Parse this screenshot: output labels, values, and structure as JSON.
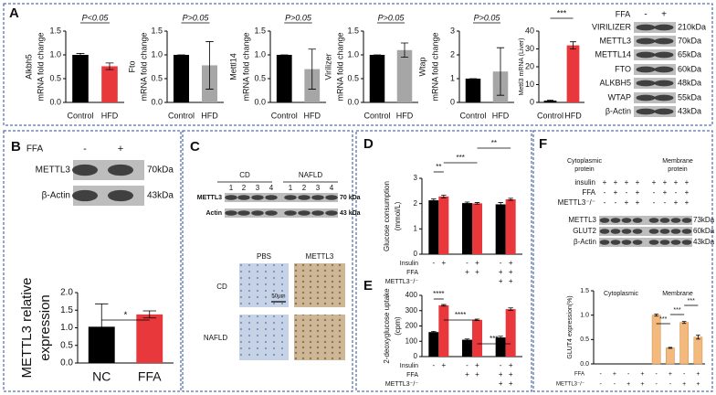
{
  "panel_labels": [
    "A",
    "B",
    "C",
    "D",
    "E",
    "F"
  ],
  "blots": [
    {
      "header": "FFA",
      "lanes": [
        "-",
        "+"
      ],
      "rows": [
        {
          "protein": "VIRILIZER",
          "size": "210kDa"
        },
        {
          "protein": "METTL3",
          "size": "70kDa"
        },
        {
          "protein": "METTL14",
          "size": "65kDa"
        },
        {
          "protein": "FTO",
          "size": "60kDa"
        },
        {
          "protein": "ALKBH5",
          "size": "48kDa"
        },
        {
          "protein": "WTAP",
          "size": "55kDa"
        },
        {
          "protein": "β-Actin",
          "size": "43kDa"
        }
      ]
    },
    {
      "header": "FFA",
      "lanes": [
        "-",
        "+"
      ],
      "rows": [
        {
          "protein": "METTL3",
          "size": "70kDa"
        },
        {
          "protein": "β-Actin",
          "size": "43kDa"
        }
      ]
    },
    {
      "groups": [
        "CD",
        "NAFLD"
      ],
      "lanes": [
        "1",
        "2",
        "3",
        "4",
        "1",
        "2",
        "3",
        "4"
      ],
      "rows": [
        {
          "protein": "METTL3",
          "size": "70 kDa"
        },
        {
          "protein": "Actin",
          "size": "43 kDa"
        }
      ]
    },
    {
      "groups": [
        [
          "Cytoplasmic",
          "protein"
        ],
        [
          "Membrane",
          "protein"
        ]
      ],
      "conditions": [
        {
          "label": "insulin",
          "signs": [
            "+",
            "+",
            "+",
            "+",
            "+",
            "+",
            "+",
            "+"
          ]
        },
        {
          "label": "FFA",
          "signs": [
            "-",
            "+",
            "-",
            "+",
            "-",
            "+",
            "-",
            "+"
          ]
        },
        {
          "label": "METTL3⁻/⁻",
          "signs": [
            "-",
            "-",
            "+",
            "+",
            "-",
            "-",
            "+",
            "+"
          ]
        }
      ],
      "rows": [
        {
          "protein": "METTL3",
          "size": "73kDa"
        },
        {
          "protein": "GLUT2",
          "size": "60kDa"
        },
        {
          "protein": "β-Actin",
          "size": "43kDa"
        }
      ]
    }
  ],
  "histology": {
    "columns": [
      "PBS",
      "METTL3"
    ],
    "rows": [
      "CD",
      "NAFLD"
    ],
    "scale": "50μm"
  },
  "chart_data": [
    {
      "type": "bar",
      "ylabel": [
        "Alkbh5",
        "mRNA fold change"
      ],
      "categories": [
        "Control",
        "HFD"
      ],
      "values": [
        1.0,
        0.76
      ],
      "errors": [
        0.03,
        0.07
      ],
      "colors": [
        "#000000",
        "#e8383b"
      ],
      "ylim": [
        0,
        1.5
      ],
      "yticks": [
        {
          "value": 0,
          "label": "0.0"
        },
        0.5,
        {
          "value": 1,
          "label": "1.0"
        },
        1.5
      ],
      "annotations": [
        "P<0.05"
      ]
    },
    {
      "type": "bar",
      "ylabel": [
        "Fto",
        "mRNA fold change"
      ],
      "categories": [
        "Control",
        "HFD"
      ],
      "values": [
        1.0,
        0.78
      ],
      "errors": [
        0,
        0.5
      ],
      "colors": [
        "#000000",
        "#a6a6a6"
      ],
      "ylim": [
        0,
        1.5
      ],
      "yticks": [
        {
          "value": 0,
          "label": "0.0"
        },
        0.5,
        {
          "value": 1,
          "label": "1.0"
        },
        1.5
      ],
      "annotations": [
        "P>0.05"
      ]
    },
    {
      "type": "bar",
      "ylabel": [
        "Mettl14",
        "mRNA fold change"
      ],
      "categories": [
        "Control",
        "HFD"
      ],
      "values": [
        1.0,
        0.7
      ],
      "errors": [
        0,
        0.42
      ],
      "colors": [
        "#000000",
        "#a6a6a6"
      ],
      "ylim": [
        0,
        1.5
      ],
      "yticks": [
        {
          "value": 0,
          "label": "0.0"
        },
        0.5,
        {
          "value": 1,
          "label": "1.0"
        },
        1.5
      ],
      "annotations": [
        "P>0.05"
      ]
    },
    {
      "type": "bar",
      "ylabel": [
        "Virilizer",
        "mRNA fold change"
      ],
      "categories": [
        "Control",
        "HFD"
      ],
      "values": [
        1.0,
        1.1
      ],
      "errors": [
        0,
        0.15
      ],
      "colors": [
        "#000000",
        "#a6a6a6"
      ],
      "ylim": [
        0,
        1.5
      ],
      "yticks": [
        {
          "value": 0,
          "label": "0.0"
        },
        0.5,
        {
          "value": 1,
          "label": "1.0"
        },
        1.5
      ],
      "annotations": [
        "P>0.05"
      ]
    },
    {
      "type": "bar",
      "ylabel": [
        "Wtap",
        "mRNA fold change"
      ],
      "categories": [
        "Control",
        "HFD"
      ],
      "values": [
        1.0,
        1.3
      ],
      "errors": [
        0,
        1.0
      ],
      "colors": [
        "#000000",
        "#a6a6a6"
      ],
      "ylim": [
        0,
        3
      ],
      "yticks": [
        0,
        1,
        2,
        3
      ],
      "annotations": [
        "P>0.05"
      ]
    },
    {
      "type": "bar",
      "ylabel": [
        "Mettl3 mRNA (Liver)"
      ],
      "categories": [
        "Control",
        "HFD"
      ],
      "values": [
        1,
        32
      ],
      "errors": [
        0.3,
        2
      ],
      "colors": [
        "#000000",
        "#e8383b"
      ],
      "ylim": [
        0,
        40
      ],
      "yticks": [
        0,
        10,
        20,
        30,
        40
      ],
      "annotations": [
        "***"
      ]
    },
    {
      "type": "bar",
      "ylabel": [
        "METTL3 relative",
        "expression"
      ],
      "categories": [
        "NC",
        "FFA"
      ],
      "values": [
        1.03,
        1.38
      ],
      "errors": [
        0.65,
        0.1
      ],
      "colors": [
        "#000000",
        "#e8383b"
      ],
      "ylim": [
        0,
        2
      ],
      "yticks": [
        {
          "value": 0,
          "label": "0.0"
        },
        0.5,
        {
          "value": 1,
          "label": "1.0"
        },
        1.5,
        {
          "value": 2,
          "label": "2.0"
        }
      ],
      "annotations": [
        "*"
      ]
    },
    {
      "type": "bar",
      "ylabel": [
        "Glucose consumption",
        "(mmol/L)"
      ],
      "series": [
        {
          "color": "#000000",
          "values": [
            2.13,
            2.02,
            1.97
          ],
          "errors": [
            0.05,
            0.04,
            0.07
          ]
        },
        {
          "color": "#e8383b",
          "values": [
            2.28,
            2.01,
            2.17
          ],
          "errors": [
            0.05,
            0.03,
            0.04
          ]
        }
      ],
      "ylim": [
        0,
        3
      ],
      "yticks": [
        0,
        1,
        2,
        3
      ],
      "conditions": [
        {
          "label": "Insulin",
          "signs": [
            "-",
            "+",
            "-",
            "+",
            "-",
            "+"
          ]
        },
        {
          "label": "FFA",
          "signs": [
            null,
            null,
            "+",
            "+",
            "+",
            "+"
          ]
        },
        {
          "label": "METTL3⁻/⁻",
          "signs": [
            null,
            null,
            null,
            null,
            "+",
            "+"
          ]
        }
      ],
      "annotations": [
        "**",
        "***",
        "**"
      ]
    },
    {
      "type": "bar",
      "ylabel": [
        "2-deoxyglucose uptake",
        "(cpm)"
      ],
      "series": [
        {
          "color": "#000000",
          "values": [
            160,
            110,
            125
          ],
          "errors": [
            5,
            5,
            8
          ]
        },
        {
          "color": "#e8383b",
          "values": [
            335,
            240,
            310
          ],
          "errors": [
            5,
            5,
            8
          ]
        }
      ],
      "ylim": [
        0,
        400
      ],
      "yticks": [
        0,
        100,
        200,
        300,
        400
      ],
      "conditions": [
        {
          "label": "Insulin",
          "signs": [
            "-",
            "+",
            "-",
            "+",
            "-",
            "+"
          ]
        },
        {
          "label": "FFA",
          "signs": [
            null,
            null,
            "+",
            "+",
            "+",
            "+"
          ]
        },
        {
          "label": "METTL3⁻/⁻",
          "signs": [
            null,
            null,
            null,
            null,
            "+",
            "+"
          ]
        }
      ],
      "annotations": [
        "****",
        "****",
        "***"
      ]
    },
    {
      "type": "bar",
      "ylabel": [
        "GLUT4 expression(%)"
      ],
      "group_labels": [
        "Cytoplasmic",
        "Membrane"
      ],
      "values": [
        0,
        0,
        0,
        0,
        1.0,
        0.33,
        0.85,
        0.55
      ],
      "errors": [
        0,
        0,
        0,
        0,
        0.02,
        0.01,
        0.02,
        0.04
      ],
      "color": "#f4b97c",
      "ylim": [
        0,
        1.5
      ],
      "yticks": [
        {
          "value": 0,
          "label": "0.0"
        },
        0.5,
        {
          "value": 1,
          "label": "1.0"
        },
        1.5
      ],
      "conditions": [
        {
          "label": "FFA",
          "signs": [
            "-",
            "+",
            "-",
            "+",
            "-",
            "+",
            "-",
            "+"
          ]
        },
        {
          "label": "METTL3⁻/⁻",
          "signs": [
            "-",
            "-",
            "+",
            "+",
            "-",
            "-",
            "+",
            "+"
          ]
        }
      ],
      "annotations": [
        "***",
        "***",
        "***"
      ]
    }
  ]
}
